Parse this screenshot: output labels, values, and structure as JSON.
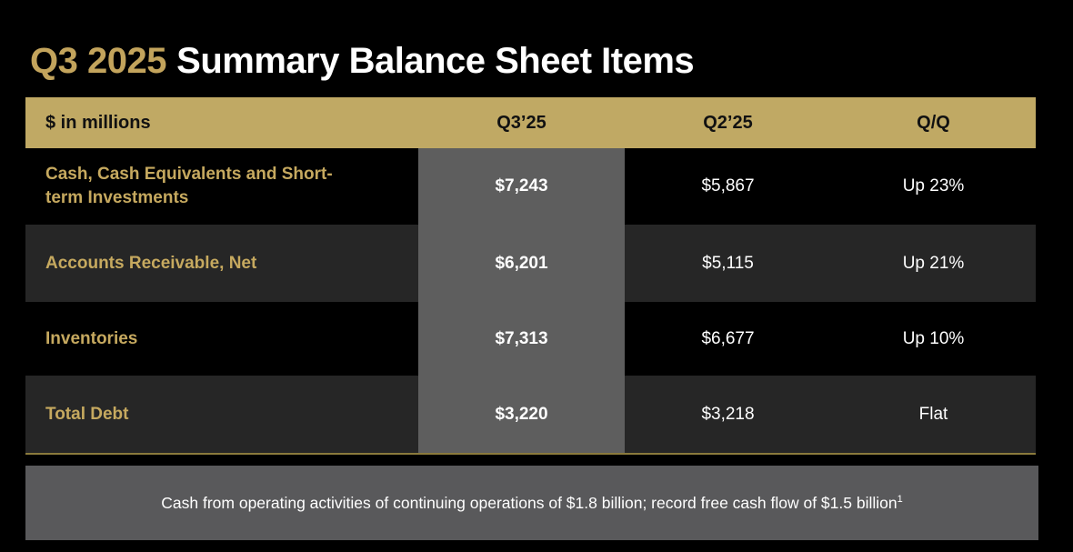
{
  "title": {
    "highlight": "Q3 2025",
    "rest": "Summary Balance Sheet Items"
  },
  "table": {
    "header": {
      "label": "$ in millions",
      "q3": "Q3’25",
      "q2": "Q2’25",
      "qq": "Q/Q"
    },
    "rows": [
      {
        "label": "Cash, Cash Equivalents and Short-term Investments",
        "q3": "$7,243",
        "q2": "$5,867",
        "qq": "Up 23%"
      },
      {
        "label": "Accounts Receivable, Net",
        "q3": "$6,201",
        "q2": "$5,115",
        "qq": "Up 21%"
      },
      {
        "label": "Inventories",
        "q3": "$7,313",
        "q2": "$6,677",
        "qq": "Up 10%"
      },
      {
        "label": "Total Debt",
        "q3": "$3,220",
        "q2": "$3,218",
        "qq": "Flat"
      }
    ]
  },
  "footer": {
    "text": "Cash from operating activities of continuing operations of $1.8 billion; record free cash flow of $1.5 billion",
    "footnote": "1"
  },
  "colors": {
    "background": "#000000",
    "accent_gold": "#C0A964",
    "gold_text": "#C6A95F",
    "highlight_column_gray": "#5E5E5E",
    "alt_row_dark": "#262626",
    "footer_gray": "#59595B",
    "gold_rule": "#8A7A3C",
    "white_text": "#FFFFFF"
  }
}
